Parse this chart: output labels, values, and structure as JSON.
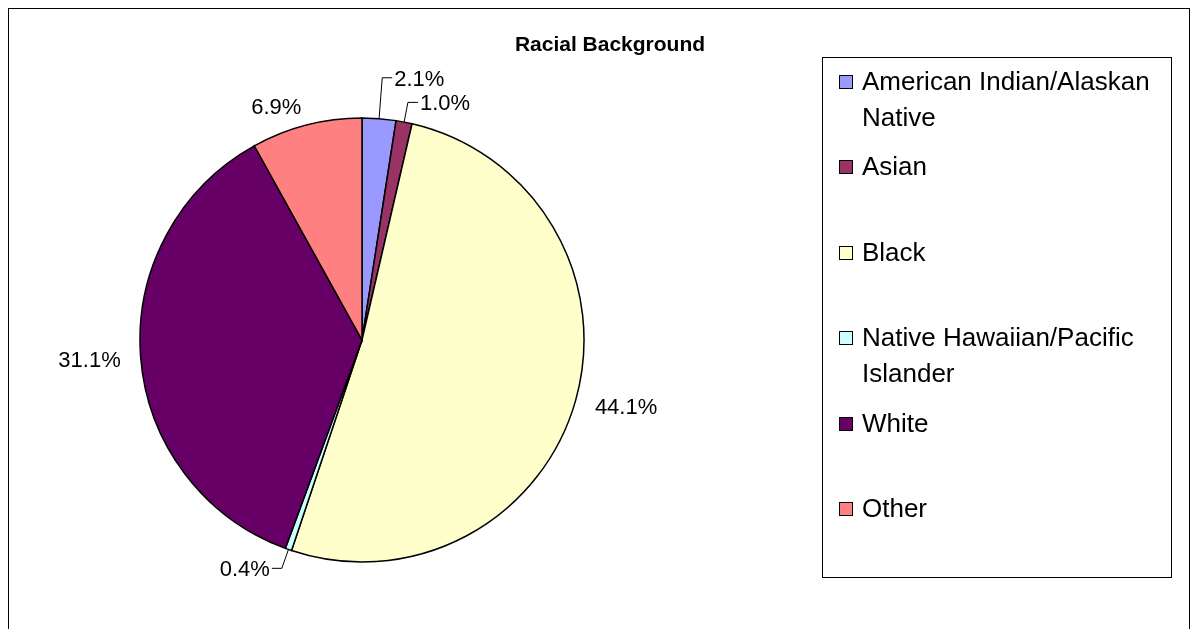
{
  "chart_data": {
    "type": "pie",
    "title": "Racial Background",
    "categories": [
      "American Indian/Alaskan Native",
      "Asian",
      "Black",
      "Native Hawaiian/Pacific Islander",
      "White",
      "Other"
    ],
    "values": [
      2.1,
      1.0,
      44.1,
      0.4,
      31.1,
      6.9
    ],
    "colors": [
      "#9999ff",
      "#993366",
      "#ffffcc",
      "#ccffff",
      "#660066",
      "#ff8080"
    ],
    "value_labels": [
      "2.1%",
      "1.0%",
      "44.1%",
      "0.4%",
      "31.1%",
      "6.9%"
    ],
    "legend": "right"
  }
}
